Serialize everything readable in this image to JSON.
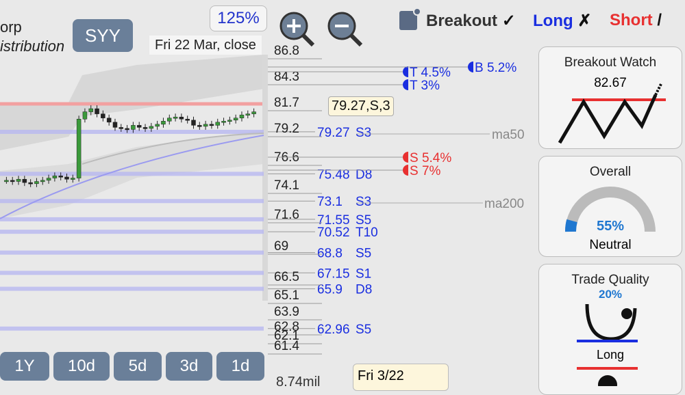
{
  "company": {
    "name_fragment": "orp",
    "sector_fragment": "istribution"
  },
  "symbol": "SYY",
  "zoom": "125%",
  "date_label": "Fri 22 Mar, close",
  "header": {
    "breakout": "Breakout",
    "breakout_mark": "✓",
    "long": "Long",
    "long_mark": "✗",
    "short": "Short",
    "short_mark": "/"
  },
  "price_axis": {
    "ticks": [
      "86.8",
      "84.3",
      "81.7",
      "79.2",
      "76.6",
      "74.1",
      "71.6",
      "69",
      "66.5",
      "65.1",
      "63.9",
      "62.8",
      "62.1",
      "61.4"
    ]
  },
  "closes": [
    74.9,
    74.8,
    75.0,
    74.7,
    74.6,
    74.8,
    74.9,
    75.1,
    75.3,
    75.2,
    75.0,
    75.1,
    80.5,
    81.2,
    81.5,
    81.0,
    80.6,
    80.2,
    79.7,
    79.6,
    79.5,
    79.9,
    79.7,
    79.6,
    79.8,
    80.0,
    80.3,
    80.6,
    80.7,
    80.5,
    80.4,
    79.9,
    79.8,
    80.0,
    79.9,
    80.2,
    80.3,
    80.4,
    80.6,
    80.9,
    81.0,
    81.2
  ],
  "levels": [
    {
      "price": 79.27,
      "code": "S3"
    },
    {
      "price": 75.48,
      "code": "D8"
    },
    {
      "price": 73.1,
      "code": "S3"
    },
    {
      "price": 71.55,
      "code": "S5"
    },
    {
      "price": 70.52,
      "code": "T10"
    },
    {
      "price": 68.8,
      "code": "S5"
    },
    {
      "price": 67.15,
      "code": "S1"
    },
    {
      "price": 65.9,
      "code": "D8"
    },
    {
      "price": 62.96,
      "code": "S5"
    }
  ],
  "tooltip": "79.27,S,3",
  "targets": [
    {
      "label": "T 4.5%"
    },
    {
      "label": "T 3%"
    },
    {
      "label": "B 5.2%"
    },
    {
      "label": "S 5.4%"
    },
    {
      "label": "S 7%"
    }
  ],
  "ma_labels": [
    "ma50",
    "ma200"
  ],
  "periods": [
    "1Y",
    "10d",
    "5d",
    "3d",
    "1d"
  ],
  "footer": {
    "date": "Fri 3/22",
    "volume": "8.74mil"
  },
  "cards": {
    "breakout_watch": {
      "title": "Breakout Watch",
      "value": "82.67"
    },
    "overall": {
      "title": "Overall",
      "value": "55%",
      "label": "Neutral"
    },
    "trade_quality": {
      "title": "Trade Quality",
      "value": "20%",
      "label": "Long"
    }
  }
}
